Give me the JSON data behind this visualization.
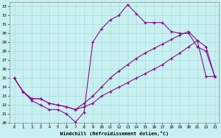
{
  "xlabel": "Windchill (Refroidissement éolien,°C)",
  "line_color": "#880088",
  "bg_color": "#c8f0f0",
  "grid_color": "#a8d8d8",
  "ylim": [
    20,
    33.5
  ],
  "xlim": [
    -0.5,
    23.5
  ],
  "yticks": [
    20,
    21,
    22,
    23,
    24,
    25,
    26,
    27,
    28,
    29,
    30,
    31,
    32,
    33
  ],
  "xticks": [
    0,
    1,
    2,
    3,
    4,
    5,
    6,
    7,
    8,
    9,
    10,
    11,
    12,
    13,
    14,
    15,
    16,
    17,
    18,
    19,
    20,
    21,
    22,
    23
  ],
  "lines": [
    {
      "x": [
        0,
        1,
        2,
        3,
        4,
        5,
        6,
        7,
        8,
        9,
        10,
        11,
        12,
        13,
        14,
        15,
        16,
        17,
        18,
        19,
        20,
        21,
        22,
        23
      ],
      "y": [
        25.0,
        23.5,
        22.5,
        22.0,
        21.5,
        21.5,
        21.0,
        20.1,
        21.2,
        29.0,
        30.5,
        31.5,
        32.0,
        33.2,
        32.2,
        31.2,
        31.2,
        31.2,
        30.2,
        30.0,
        30.0,
        28.5,
        28.0,
        25.2
      ]
    },
    {
      "x": [
        0,
        1,
        2,
        3,
        4,
        5,
        6,
        7,
        8,
        9,
        10,
        11,
        12,
        13,
        14,
        15,
        16,
        17,
        18,
        19,
        20,
        21,
        22,
        23
      ],
      "y": [
        25.0,
        23.5,
        22.7,
        22.7,
        22.2,
        22.0,
        21.8,
        21.5,
        22.2,
        23.0,
        24.0,
        25.0,
        25.8,
        26.5,
        27.2,
        27.8,
        28.3,
        28.8,
        29.3,
        29.8,
        30.2,
        29.2,
        28.5,
        25.2
      ]
    },
    {
      "x": [
        0,
        1,
        2,
        3,
        4,
        5,
        6,
        7,
        8,
        9,
        10,
        11,
        12,
        13,
        14,
        15,
        16,
        17,
        18,
        19,
        20,
        21,
        22,
        23
      ],
      "y": [
        25.0,
        23.5,
        22.7,
        22.7,
        22.2,
        22.0,
        21.8,
        21.5,
        21.8,
        22.2,
        23.0,
        23.5,
        24.0,
        24.5,
        25.0,
        25.5,
        26.0,
        26.5,
        27.2,
        27.8,
        28.5,
        29.2,
        25.2,
        25.2
      ]
    }
  ]
}
